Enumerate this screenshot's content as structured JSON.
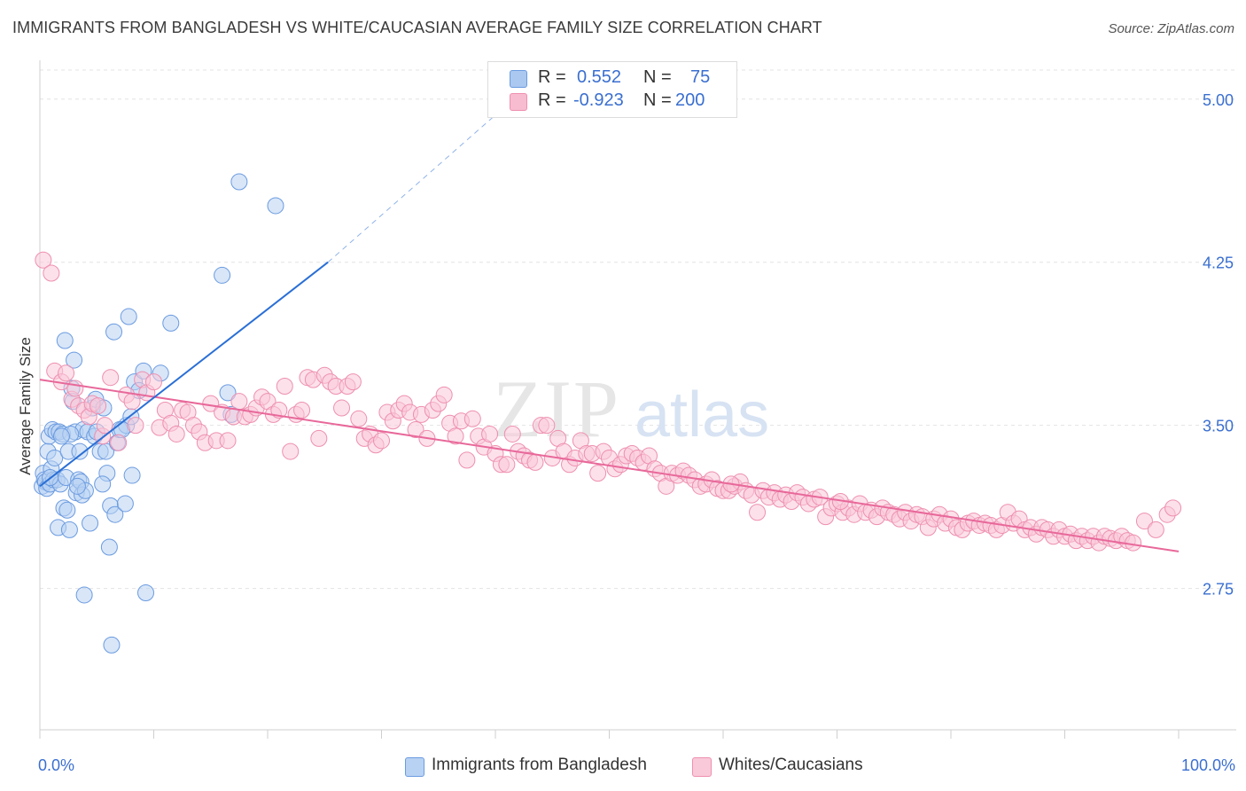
{
  "title": "IMMIGRANTS FROM BANGLADESH VS WHITE/CAUCASIAN AVERAGE FAMILY SIZE CORRELATION CHART",
  "source": "Source: ZipAtlas.com",
  "watermark": {
    "zip": "ZIP",
    "atlas": "atlas"
  },
  "legend": {
    "rows": [
      {
        "r_label": "R =",
        "r_value": "0.552",
        "n_label": "N =",
        "n_value": "75",
        "color": "#aac8f0",
        "stroke": "#6b9be0"
      },
      {
        "r_label": "R =",
        "r_value": "-0.923",
        "n_label": "N =",
        "n_value": "200",
        "color": "#f7bcd0",
        "stroke": "#ee8fb0"
      }
    ]
  },
  "bottom_legend": [
    {
      "label": "Immigrants from Bangladesh",
      "color": "#b8d2f3",
      "stroke": "#6b9be0"
    },
    {
      "label": "Whites/Caucasians",
      "color": "#f9c9d9",
      "stroke": "#ee8fb0"
    }
  ],
  "chart_data": {
    "type": "scatter",
    "title": "IMMIGRANTS FROM BANGLADESH VS WHITE/CAUCASIAN AVERAGE FAMILY SIZE CORRELATION CHART",
    "xlabel": "",
    "ylabel": "Average Family Size",
    "xlim": [
      0,
      100
    ],
    "ylim": [
      2.1,
      5.15
    ],
    "x_tick_labels": [
      "0.0%",
      "100.0%"
    ],
    "y_ticks": [
      2.75,
      3.5,
      4.25,
      5.0
    ],
    "y_tick_labels": [
      "2.75",
      "3.50",
      "4.25",
      "5.00"
    ],
    "grid": true,
    "colors": {
      "blue_fill": "#b8d2f3",
      "blue_stroke": "#6b9be0",
      "blue_line": "#2a6fd6",
      "pink_fill": "#f9c9d9",
      "pink_stroke": "#ee8fb0",
      "pink_line": "#e8689a",
      "axis_label": "#3a6fd0"
    },
    "series": [
      {
        "name": "Immigrants from Bangladesh",
        "trend": {
          "x0": 0.0,
          "y0": 3.22,
          "x1": 25.3,
          "y1": 4.25,
          "dash_x1": 40.5,
          "dash_y1": 4.95
        },
        "points": [
          [
            0.2,
            3.22
          ],
          [
            0.3,
            3.28
          ],
          [
            0.4,
            3.25
          ],
          [
            0.5,
            3.24
          ],
          [
            0.6,
            3.21
          ],
          [
            0.7,
            3.38
          ],
          [
            0.8,
            3.45
          ],
          [
            0.9,
            3.23
          ],
          [
            1.0,
            3.3
          ],
          [
            1.1,
            3.48
          ],
          [
            1.2,
            3.25
          ],
          [
            1.3,
            3.35
          ],
          [
            1.4,
            3.47
          ],
          [
            1.5,
            3.25
          ],
          [
            1.6,
            3.03
          ],
          [
            1.7,
            3.47
          ],
          [
            1.8,
            3.23
          ],
          [
            2.0,
            3.46
          ],
          [
            2.1,
            3.12
          ],
          [
            2.2,
            3.89
          ],
          [
            2.3,
            3.26
          ],
          [
            2.4,
            3.11
          ],
          [
            2.5,
            3.38
          ],
          [
            2.6,
            3.02
          ],
          [
            2.8,
            3.67
          ],
          [
            2.9,
            3.61
          ],
          [
            3.0,
            3.8
          ],
          [
            3.1,
            3.47
          ],
          [
            3.2,
            3.19
          ],
          [
            3.4,
            3.25
          ],
          [
            3.5,
            3.38
          ],
          [
            3.6,
            3.24
          ],
          [
            3.7,
            3.18
          ],
          [
            3.8,
            3.48
          ],
          [
            3.9,
            2.72
          ],
          [
            4.0,
            3.2
          ],
          [
            4.2,
            3.47
          ],
          [
            4.4,
            3.05
          ],
          [
            4.6,
            3.58
          ],
          [
            4.8,
            3.45
          ],
          [
            4.9,
            3.62
          ],
          [
            5.0,
            3.47
          ],
          [
            5.3,
            3.38
          ],
          [
            5.6,
            3.58
          ],
          [
            5.8,
            3.38
          ],
          [
            5.9,
            3.28
          ],
          [
            6.1,
            2.94
          ],
          [
            6.2,
            3.13
          ],
          [
            6.5,
            3.93
          ],
          [
            6.6,
            3.09
          ],
          [
            6.8,
            3.42
          ],
          [
            7.0,
            3.48
          ],
          [
            7.5,
            3.14
          ],
          [
            7.6,
            3.5
          ],
          [
            7.8,
            4.0
          ],
          [
            8.0,
            3.54
          ],
          [
            8.1,
            3.27
          ],
          [
            8.3,
            3.7
          ],
          [
            8.7,
            3.66
          ],
          [
            9.1,
            3.75
          ],
          [
            9.3,
            2.73
          ],
          [
            10.6,
            3.74
          ],
          [
            11.5,
            3.97
          ],
          [
            16.0,
            4.19
          ],
          [
            16.5,
            3.65
          ],
          [
            16.8,
            3.55
          ],
          [
            17.5,
            4.62
          ],
          [
            20.7,
            4.51
          ],
          [
            5.5,
            3.23
          ],
          [
            7.2,
            3.48
          ],
          [
            2.7,
            3.46
          ],
          [
            3.3,
            3.22
          ],
          [
            6.3,
            2.49
          ],
          [
            1.9,
            3.45
          ],
          [
            0.9,
            3.26
          ]
        ]
      },
      {
        "name": "Whites/Caucasians",
        "trend": {
          "x0": 0.0,
          "y0": 3.71,
          "x1": 100.0,
          "y1": 2.92
        },
        "points": [
          [
            0.3,
            4.26
          ],
          [
            1.0,
            4.2
          ],
          [
            1.3,
            3.75
          ],
          [
            1.9,
            3.7
          ],
          [
            2.3,
            3.74
          ],
          [
            2.8,
            3.62
          ],
          [
            3.1,
            3.67
          ],
          [
            3.4,
            3.59
          ],
          [
            3.9,
            3.57
          ],
          [
            4.3,
            3.54
          ],
          [
            4.6,
            3.6
          ],
          [
            5.1,
            3.59
          ],
          [
            5.5,
            3.45
          ],
          [
            5.7,
            3.5
          ],
          [
            6.2,
            3.72
          ],
          [
            6.9,
            3.42
          ],
          [
            7.6,
            3.64
          ],
          [
            8.1,
            3.61
          ],
          [
            8.4,
            3.5
          ],
          [
            9.0,
            3.71
          ],
          [
            9.4,
            3.65
          ],
          [
            10.0,
            3.7
          ],
          [
            10.5,
            3.49
          ],
          [
            11.0,
            3.57
          ],
          [
            11.5,
            3.51
          ],
          [
            12.0,
            3.46
          ],
          [
            12.5,
            3.57
          ],
          [
            13.0,
            3.56
          ],
          [
            13.5,
            3.5
          ],
          [
            14.0,
            3.47
          ],
          [
            14.5,
            3.42
          ],
          [
            15.0,
            3.6
          ],
          [
            15.5,
            3.43
          ],
          [
            16.0,
            3.56
          ],
          [
            16.5,
            3.43
          ],
          [
            17.0,
            3.54
          ],
          [
            17.5,
            3.61
          ],
          [
            18.0,
            3.54
          ],
          [
            18.5,
            3.55
          ],
          [
            19.0,
            3.58
          ],
          [
            19.5,
            3.63
          ],
          [
            20.0,
            3.61
          ],
          [
            20.5,
            3.55
          ],
          [
            21.0,
            3.57
          ],
          [
            21.5,
            3.68
          ],
          [
            22.0,
            3.38
          ],
          [
            22.5,
            3.55
          ],
          [
            23.0,
            3.57
          ],
          [
            23.5,
            3.72
          ],
          [
            24.0,
            3.71
          ],
          [
            24.5,
            3.44
          ],
          [
            25.0,
            3.73
          ],
          [
            25.5,
            3.7
          ],
          [
            26.0,
            3.68
          ],
          [
            26.5,
            3.58
          ],
          [
            27.0,
            3.68
          ],
          [
            27.5,
            3.7
          ],
          [
            28.0,
            3.53
          ],
          [
            28.5,
            3.44
          ],
          [
            29.0,
            3.46
          ],
          [
            29.5,
            3.41
          ],
          [
            30.0,
            3.43
          ],
          [
            30.5,
            3.56
          ],
          [
            31.0,
            3.52
          ],
          [
            31.5,
            3.57
          ],
          [
            32.0,
            3.6
          ],
          [
            32.5,
            3.56
          ],
          [
            33.0,
            3.48
          ],
          [
            33.5,
            3.55
          ],
          [
            34.0,
            3.44
          ],
          [
            34.5,
            3.57
          ],
          [
            35.0,
            3.6
          ],
          [
            35.5,
            3.64
          ],
          [
            36.0,
            3.51
          ],
          [
            36.5,
            3.45
          ],
          [
            37.0,
            3.52
          ],
          [
            37.5,
            3.34
          ],
          [
            38.0,
            3.53
          ],
          [
            38.5,
            3.45
          ],
          [
            39.0,
            3.4
          ],
          [
            39.5,
            3.46
          ],
          [
            40.0,
            3.37
          ],
          [
            40.5,
            3.32
          ],
          [
            41.0,
            3.32
          ],
          [
            41.5,
            3.46
          ],
          [
            42.0,
            3.38
          ],
          [
            42.5,
            3.36
          ],
          [
            43.0,
            3.34
          ],
          [
            43.5,
            3.33
          ],
          [
            44.0,
            3.5
          ],
          [
            44.5,
            3.5
          ],
          [
            45.0,
            3.35
          ],
          [
            45.5,
            3.44
          ],
          [
            46.0,
            3.38
          ],
          [
            46.5,
            3.32
          ],
          [
            47.0,
            3.35
          ],
          [
            47.5,
            3.43
          ],
          [
            48.0,
            3.37
          ],
          [
            48.5,
            3.37
          ],
          [
            49.0,
            3.28
          ],
          [
            49.5,
            3.38
          ],
          [
            50.0,
            3.35
          ],
          [
            50.5,
            3.3
          ],
          [
            51.0,
            3.32
          ],
          [
            51.5,
            3.36
          ],
          [
            52.0,
            3.37
          ],
          [
            52.5,
            3.35
          ],
          [
            53.0,
            3.33
          ],
          [
            53.5,
            3.36
          ],
          [
            54.0,
            3.3
          ],
          [
            54.5,
            3.28
          ],
          [
            55.0,
            3.22
          ],
          [
            55.5,
            3.28
          ],
          [
            56.0,
            3.27
          ],
          [
            56.5,
            3.29
          ],
          [
            57.0,
            3.27
          ],
          [
            57.5,
            3.25
          ],
          [
            58.0,
            3.22
          ],
          [
            58.5,
            3.23
          ],
          [
            59.0,
            3.25
          ],
          [
            59.5,
            3.21
          ],
          [
            60.0,
            3.2
          ],
          [
            60.5,
            3.2
          ],
          [
            61.0,
            3.22
          ],
          [
            61.5,
            3.24
          ],
          [
            62.0,
            3.2
          ],
          [
            62.5,
            3.18
          ],
          [
            63.0,
            3.1
          ],
          [
            63.5,
            3.2
          ],
          [
            64.0,
            3.17
          ],
          [
            64.5,
            3.19
          ],
          [
            65.0,
            3.16
          ],
          [
            65.5,
            3.18
          ],
          [
            66.0,
            3.15
          ],
          [
            66.5,
            3.19
          ],
          [
            67.0,
            3.17
          ],
          [
            67.5,
            3.14
          ],
          [
            68.0,
            3.16
          ],
          [
            68.5,
            3.17
          ],
          [
            69.0,
            3.08
          ],
          [
            69.5,
            3.12
          ],
          [
            70.0,
            3.14
          ],
          [
            70.5,
            3.1
          ],
          [
            71.0,
            3.12
          ],
          [
            71.5,
            3.09
          ],
          [
            72.0,
            3.14
          ],
          [
            72.5,
            3.1
          ],
          [
            73.0,
            3.11
          ],
          [
            73.5,
            3.08
          ],
          [
            74.0,
            3.12
          ],
          [
            74.5,
            3.1
          ],
          [
            75.0,
            3.09
          ],
          [
            75.5,
            3.07
          ],
          [
            76.0,
            3.1
          ],
          [
            76.5,
            3.06
          ],
          [
            77.0,
            3.09
          ],
          [
            77.5,
            3.08
          ],
          [
            78.0,
            3.03
          ],
          [
            78.5,
            3.07
          ],
          [
            79.0,
            3.09
          ],
          [
            79.5,
            3.05
          ],
          [
            80.0,
            3.07
          ],
          [
            80.5,
            3.03
          ],
          [
            81.0,
            3.02
          ],
          [
            81.5,
            3.05
          ],
          [
            82.0,
            3.06
          ],
          [
            82.5,
            3.04
          ],
          [
            83.0,
            3.05
          ],
          [
            83.5,
            3.04
          ],
          [
            84.0,
            3.02
          ],
          [
            84.5,
            3.04
          ],
          [
            85.0,
            3.1
          ],
          [
            85.5,
            3.05
          ],
          [
            86.0,
            3.07
          ],
          [
            86.5,
            3.02
          ],
          [
            87.0,
            3.03
          ],
          [
            87.5,
            3.0
          ],
          [
            88.0,
            3.03
          ],
          [
            88.5,
            3.02
          ],
          [
            89.0,
            2.99
          ],
          [
            89.5,
            3.02
          ],
          [
            90.0,
            2.99
          ],
          [
            90.5,
            3.0
          ],
          [
            91.0,
            2.97
          ],
          [
            91.5,
            2.99
          ],
          [
            92.0,
            2.97
          ],
          [
            92.5,
            2.99
          ],
          [
            93.0,
            2.96
          ],
          [
            93.5,
            2.99
          ],
          [
            94.0,
            2.98
          ],
          [
            94.5,
            2.97
          ],
          [
            95.0,
            2.99
          ],
          [
            95.5,
            2.97
          ],
          [
            96.0,
            2.96
          ],
          [
            97.0,
            3.06
          ],
          [
            98.0,
            3.02
          ],
          [
            99.0,
            3.09
          ],
          [
            99.5,
            3.12
          ],
          [
            60.7,
            3.23
          ],
          [
            70.3,
            3.15
          ]
        ]
      }
    ]
  }
}
